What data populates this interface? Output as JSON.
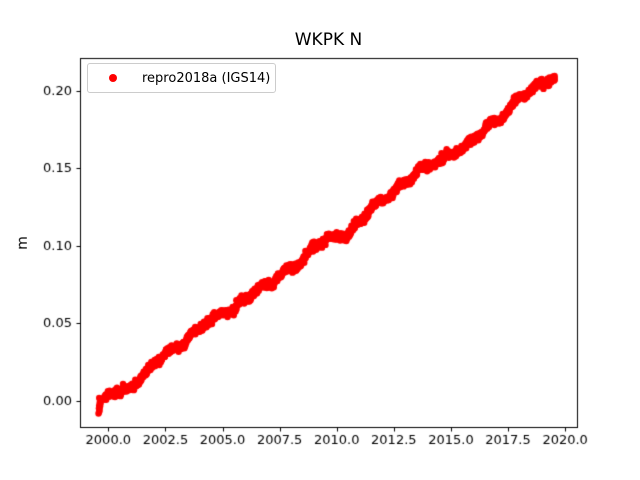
{
  "legend": {
    "border_color": "#cccccc",
    "background": "#ffffff",
    "position": "upper-left"
  },
  "chart_data": {
    "type": "scatter",
    "title": "WKPK N",
    "xlabel": "",
    "ylabel": "m",
    "xlim": [
      1998.76,
      2020.52
    ],
    "ylim": [
      -0.017,
      0.221
    ],
    "xticks": [
      2000.0,
      2002.5,
      2005.0,
      2007.5,
      2010.0,
      2012.5,
      2015.0,
      2017.5,
      2020.0
    ],
    "xtick_labels": [
      "2000.0",
      "2002.5",
      "2005.0",
      "2007.5",
      "2010.0",
      "2012.5",
      "2015.0",
      "2017.5",
      "2020.0"
    ],
    "yticks": [
      0.0,
      0.05,
      0.1,
      0.15,
      0.2
    ],
    "ytick_labels": [
      "0.00",
      "0.05",
      "0.10",
      "0.15",
      "0.20"
    ],
    "grid": false,
    "legend_position": "upper-left",
    "axis_color": "#000000",
    "tick_label_color": "#000000",
    "series": [
      {
        "name": "repro2018a (IGS14)",
        "color": "#ff0000",
        "marker": "circle",
        "marker_radius_px": 3.2,
        "model": {
          "description": "dense daily positions forming a linear band",
          "t_start": 1999.82,
          "t_end": 2019.55,
          "step_yr": 0.008,
          "trend_t0": 1999.85,
          "trend_v0_m": 0.0005,
          "slope_m_per_yr": 0.0106,
          "wiggles": [
            {
              "amplitude_m": 0.0012,
              "period_yr": 1.0,
              "phase_yr": 0.55
            },
            {
              "amplitude_m": 0.0011,
              "period_yr": 2.3,
              "phase_yr": 0.8
            },
            {
              "amplitude_m": 0.0013,
              "period_yr": 5.1,
              "phase_yr": 2.0
            }
          ],
          "noise_sigma_m": 0.0011,
          "random_walk_sigma_m": 0.0002,
          "noise_seed": 7
        },
        "pre_gap_cluster": {
          "t_start": 1999.57,
          "t_end": 1999.67,
          "n_points": 10,
          "v_min_m": -0.009,
          "v_max_m": 0.002
        },
        "outliers": [
          {
            "t": 2010.42,
            "v_m": 0.103
          }
        ],
        "endpoints": {
          "first_value_m": 0.0,
          "last_value_m": 0.209
        }
      }
    ]
  }
}
